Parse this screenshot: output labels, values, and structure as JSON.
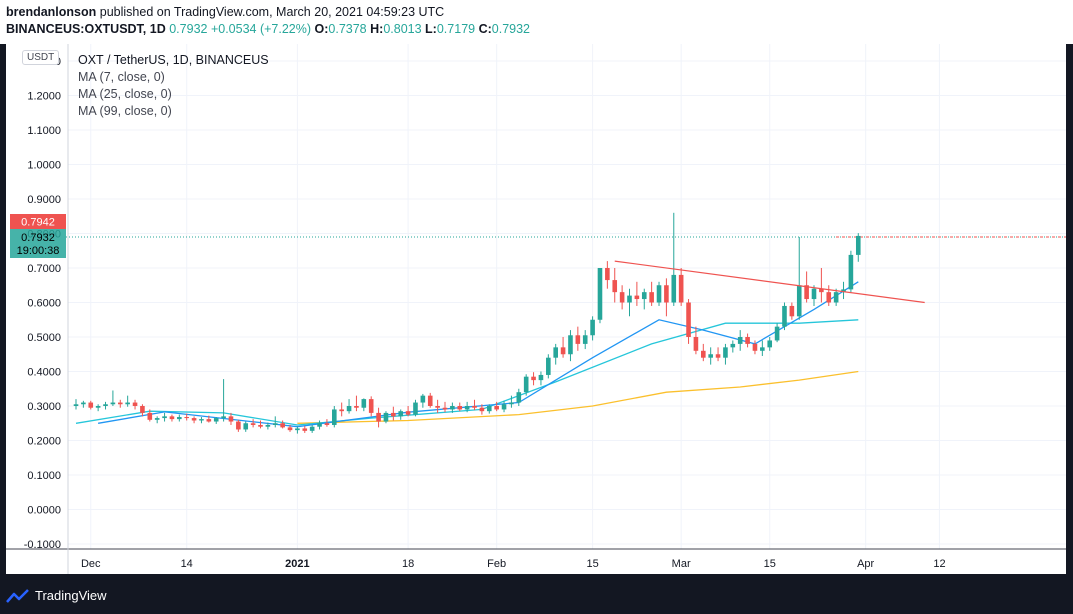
{
  "header": {
    "publisher": "brendanlonson",
    "published_text": "published on TradingView.com, March 20, 2021 04:59:23 UTC",
    "symbol": "BINANCEUS:OXTUSDT, 1D",
    "last": "0.7932",
    "change": "+0.0534 (+7.22%)",
    "o_label": "O:",
    "o": "0.7378",
    "h_label": "H:",
    "h": "0.8013",
    "l_label": "L:",
    "l": "0.7179",
    "c_label": "C:",
    "c": "0.7932"
  },
  "legend": {
    "title": "OXT / TetherUS, 1D, BINANCEUS",
    "ma1": "MA (7, close, 0)",
    "ma2": "MA (25, close, 0)",
    "ma3": "MA (99, close, 0)"
  },
  "currency_button": "USDT",
  "price_tags": {
    "red": "0.7942",
    "green": "0.7932",
    "countdown": "19:00:38"
  },
  "footer": {
    "brand": "TradingView"
  },
  "colors": {
    "up": "#26a69a",
    "down": "#ef5350",
    "ma7": "#2196f3",
    "ma25": "#26c6da",
    "ma99": "#fbc02d",
    "trendline": "#ef5350"
  },
  "chart_data": {
    "type": "candlestick",
    "title": "OXT / TetherUS, 1D, BINANCEUS",
    "x_tick_labels": [
      "Dec",
      "14",
      "2021",
      "18",
      "Feb",
      "15",
      "Mar",
      "15",
      "Apr",
      "12"
    ],
    "y_tick_labels": [
      "-0.1000",
      "0.0000",
      "0.1000",
      "0.2000",
      "0.3000",
      "0.4000",
      "0.5000",
      "0.6000",
      "0.7000",
      "0.8000",
      "0.9000",
      "1.0000",
      "1.1000",
      "1.2000",
      "1.3000"
    ],
    "ylim": [
      -0.1,
      1.3
    ],
    "grid": true,
    "candles": [
      [
        0.3,
        0.32,
        0.29,
        0.305
      ],
      [
        0.305,
        0.315,
        0.295,
        0.31
      ],
      [
        0.31,
        0.315,
        0.29,
        0.295
      ],
      [
        0.295,
        0.305,
        0.285,
        0.3
      ],
      [
        0.3,
        0.312,
        0.29,
        0.305
      ],
      [
        0.305,
        0.345,
        0.3,
        0.31
      ],
      [
        0.31,
        0.318,
        0.295,
        0.305
      ],
      [
        0.305,
        0.33,
        0.298,
        0.31
      ],
      [
        0.31,
        0.318,
        0.29,
        0.3
      ],
      [
        0.3,
        0.305,
        0.27,
        0.28
      ],
      [
        0.28,
        0.29,
        0.255,
        0.26
      ],
      [
        0.26,
        0.27,
        0.25,
        0.265
      ],
      [
        0.265,
        0.28,
        0.255,
        0.27
      ],
      [
        0.27,
        0.275,
        0.255,
        0.262
      ],
      [
        0.262,
        0.275,
        0.255,
        0.268
      ],
      [
        0.268,
        0.278,
        0.258,
        0.265
      ],
      [
        0.265,
        0.27,
        0.25,
        0.258
      ],
      [
        0.258,
        0.268,
        0.25,
        0.262
      ],
      [
        0.262,
        0.272,
        0.252,
        0.255
      ],
      [
        0.255,
        0.268,
        0.248,
        0.265
      ],
      [
        0.265,
        0.378,
        0.255,
        0.27
      ],
      [
        0.27,
        0.28,
        0.245,
        0.255
      ],
      [
        0.255,
        0.26,
        0.225,
        0.232
      ],
      [
        0.232,
        0.255,
        0.225,
        0.25
      ],
      [
        0.25,
        0.262,
        0.238,
        0.245
      ],
      [
        0.245,
        0.258,
        0.235,
        0.24
      ],
      [
        0.24,
        0.252,
        0.232,
        0.245
      ],
      [
        0.245,
        0.27,
        0.238,
        0.25
      ],
      [
        0.25,
        0.258,
        0.235,
        0.238
      ],
      [
        0.238,
        0.245,
        0.225,
        0.23
      ],
      [
        0.23,
        0.24,
        0.22,
        0.235
      ],
      [
        0.235,
        0.242,
        0.222,
        0.228
      ],
      [
        0.228,
        0.245,
        0.222,
        0.24
      ],
      [
        0.24,
        0.258,
        0.232,
        0.25
      ],
      [
        0.25,
        0.262,
        0.24,
        0.245
      ],
      [
        0.245,
        0.3,
        0.238,
        0.29
      ],
      [
        0.29,
        0.31,
        0.27,
        0.285
      ],
      [
        0.285,
        0.32,
        0.278,
        0.3
      ],
      [
        0.3,
        0.33,
        0.285,
        0.295
      ],
      [
        0.295,
        0.322,
        0.285,
        0.32
      ],
      [
        0.32,
        0.328,
        0.27,
        0.28
      ],
      [
        0.28,
        0.295,
        0.238,
        0.255
      ],
      [
        0.255,
        0.285,
        0.25,
        0.28
      ],
      [
        0.28,
        0.298,
        0.258,
        0.27
      ],
      [
        0.27,
        0.29,
        0.26,
        0.285
      ],
      [
        0.285,
        0.3,
        0.27,
        0.275
      ],
      [
        0.275,
        0.318,
        0.27,
        0.31
      ],
      [
        0.31,
        0.335,
        0.295,
        0.33
      ],
      [
        0.33,
        0.338,
        0.295,
        0.3
      ],
      [
        0.3,
        0.318,
        0.28,
        0.295
      ],
      [
        0.295,
        0.312,
        0.282,
        0.29
      ],
      [
        0.29,
        0.31,
        0.28,
        0.3
      ],
      [
        0.3,
        0.31,
        0.285,
        0.29
      ],
      [
        0.29,
        0.312,
        0.282,
        0.3
      ],
      [
        0.3,
        0.318,
        0.288,
        0.295
      ],
      [
        0.295,
        0.305,
        0.275,
        0.285
      ],
      [
        0.285,
        0.305,
        0.278,
        0.3
      ],
      [
        0.3,
        0.312,
        0.285,
        0.29
      ],
      [
        0.29,
        0.315,
        0.282,
        0.305
      ],
      [
        0.305,
        0.33,
        0.295,
        0.31
      ],
      [
        0.31,
        0.35,
        0.3,
        0.34
      ],
      [
        0.34,
        0.392,
        0.33,
        0.385
      ],
      [
        0.385,
        0.398,
        0.36,
        0.375
      ],
      [
        0.375,
        0.4,
        0.36,
        0.39
      ],
      [
        0.39,
        0.45,
        0.38,
        0.44
      ],
      [
        0.44,
        0.48,
        0.42,
        0.47
      ],
      [
        0.47,
        0.5,
        0.44,
        0.45
      ],
      [
        0.45,
        0.52,
        0.43,
        0.505
      ],
      [
        0.505,
        0.53,
        0.46,
        0.48
      ],
      [
        0.48,
        0.52,
        0.465,
        0.505
      ],
      [
        0.505,
        0.56,
        0.49,
        0.55
      ],
      [
        0.55,
        0.7,
        0.54,
        0.7
      ],
      [
        0.7,
        0.72,
        0.64,
        0.665
      ],
      [
        0.665,
        0.7,
        0.6,
        0.63
      ],
      [
        0.63,
        0.65,
        0.58,
        0.6
      ],
      [
        0.6,
        0.64,
        0.56,
        0.62
      ],
      [
        0.62,
        0.66,
        0.59,
        0.61
      ],
      [
        0.61,
        0.64,
        0.58,
        0.63
      ],
      [
        0.63,
        0.66,
        0.59,
        0.6
      ],
      [
        0.6,
        0.66,
        0.59,
        0.65
      ],
      [
        0.65,
        0.67,
        0.56,
        0.6
      ],
      [
        0.6,
        0.86,
        0.59,
        0.68
      ],
      [
        0.68,
        0.7,
        0.59,
        0.6
      ],
      [
        0.6,
        0.61,
        0.48,
        0.5
      ],
      [
        0.5,
        0.53,
        0.45,
        0.46
      ],
      [
        0.46,
        0.48,
        0.43,
        0.44
      ],
      [
        0.44,
        0.47,
        0.42,
        0.45
      ],
      [
        0.45,
        0.47,
        0.43,
        0.44
      ],
      [
        0.44,
        0.48,
        0.42,
        0.47
      ],
      [
        0.47,
        0.49,
        0.455,
        0.48
      ],
      [
        0.48,
        0.52,
        0.46,
        0.5
      ],
      [
        0.5,
        0.51,
        0.47,
        0.48
      ],
      [
        0.48,
        0.49,
        0.45,
        0.46
      ],
      [
        0.46,
        0.49,
        0.445,
        0.47
      ],
      [
        0.47,
        0.5,
        0.46,
        0.49
      ],
      [
        0.49,
        0.54,
        0.485,
        0.53
      ],
      [
        0.53,
        0.6,
        0.52,
        0.59
      ],
      [
        0.59,
        0.6,
        0.55,
        0.56
      ],
      [
        0.56,
        0.79,
        0.55,
        0.65
      ],
      [
        0.65,
        0.69,
        0.6,
        0.61
      ],
      [
        0.61,
        0.65,
        0.59,
        0.64
      ],
      [
        0.64,
        0.7,
        0.6,
        0.63
      ],
      [
        0.63,
        0.65,
        0.59,
        0.6
      ],
      [
        0.6,
        0.64,
        0.59,
        0.63
      ],
      [
        0.63,
        0.66,
        0.61,
        0.638
      ],
      [
        0.638,
        0.75,
        0.63,
        0.738
      ],
      [
        0.738,
        0.801,
        0.718,
        0.793
      ]
    ],
    "ma7": [
      [
        3,
        0.25
      ],
      [
        12,
        0.283
      ],
      [
        30,
        0.24
      ],
      [
        45,
        0.282
      ],
      [
        60,
        0.31
      ],
      [
        70,
        0.44
      ],
      [
        79,
        0.55
      ],
      [
        85,
        0.52
      ],
      [
        92,
        0.48
      ],
      [
        100,
        0.58
      ],
      [
        106,
        0.66
      ]
    ],
    "ma25": [
      [
        0,
        0.25
      ],
      [
        10,
        0.285
      ],
      [
        20,
        0.28
      ],
      [
        30,
        0.245
      ],
      [
        40,
        0.265
      ],
      [
        55,
        0.29
      ],
      [
        65,
        0.37
      ],
      [
        78,
        0.48
      ],
      [
        88,
        0.54
      ],
      [
        98,
        0.54
      ],
      [
        106,
        0.55
      ]
    ],
    "ma99": [
      [
        30,
        0.25
      ],
      [
        45,
        0.258
      ],
      [
        60,
        0.275
      ],
      [
        70,
        0.3
      ],
      [
        80,
        0.34
      ],
      [
        90,
        0.355
      ],
      [
        98,
        0.375
      ],
      [
        106,
        0.4
      ]
    ],
    "trendline": {
      "start": [
        73,
        0.72
      ],
      "end": [
        115,
        0.6
      ]
    }
  }
}
